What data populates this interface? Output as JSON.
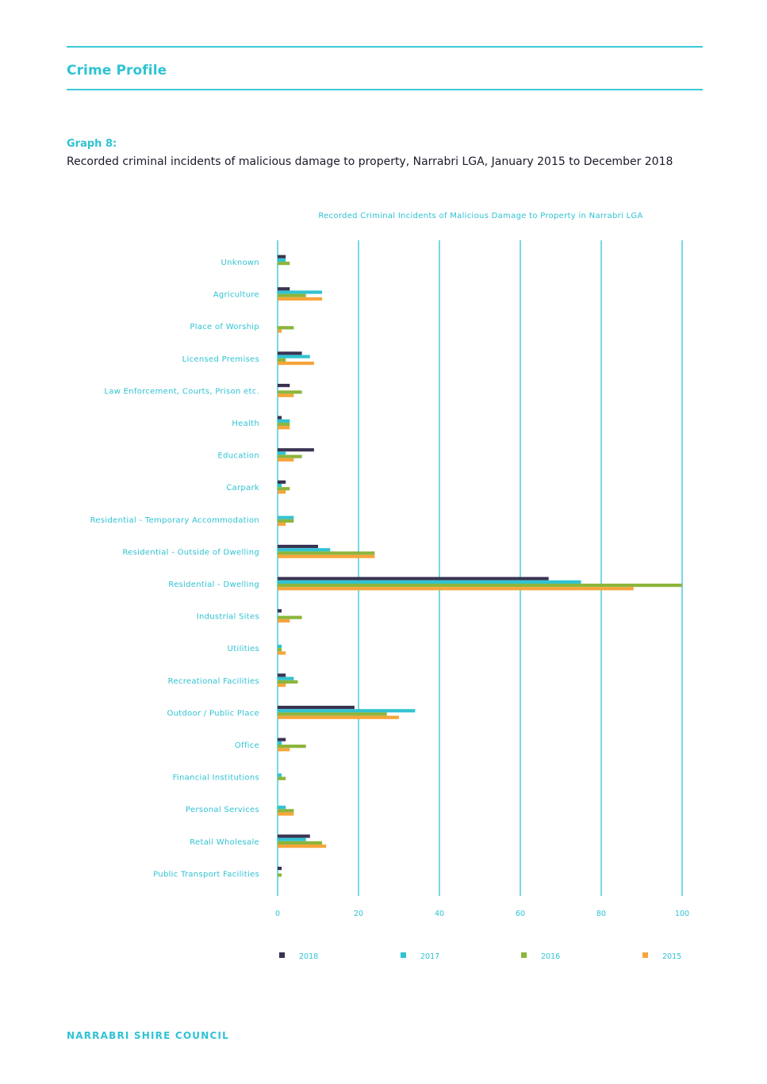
{
  "header": {
    "section_title": "Crime Profile",
    "graph_label": "Graph 8:",
    "graph_caption": "Recorded criminal incidents of malicious damage to property, Narrabri LGA, January 2015 to December 2018"
  },
  "footer": {
    "org_name": "NARRABRI SHIRE COUNCIL"
  },
  "colors": {
    "accent": "#3cc9d8",
    "2018": "#3a3352",
    "2017": "#31c3d2",
    "2016": "#8cb63c",
    "2015": "#f6a53b"
  },
  "chart_data": {
    "type": "bar",
    "orientation": "horizontal",
    "title": "Recorded Criminal Incidents of Malicious Damage to Property in Narrabri LGA",
    "categories": [
      "Unknown",
      "Agriculture",
      "Place of Worship",
      "Licensed Premises",
      "Law Enforcement, Courts, Prison etc.",
      "Health",
      "Education",
      "Carpark",
      "Residential - Temporary Accommodation",
      "Residential - Outside of Dwelling",
      "Residential - Dwelling",
      "Industrial Sites",
      "Utilities",
      "Recreational Facilities",
      "Outdoor / Public Place",
      "Office",
      "Financial Institutions",
      "Personal Services",
      "Retail Wholesale",
      "Public Transport Facilities"
    ],
    "series": [
      {
        "name": "2018",
        "values": [
          2,
          3,
          0,
          6,
          3,
          1,
          9,
          2,
          0,
          10,
          67,
          1,
          0,
          2,
          19,
          2,
          0,
          0,
          8,
          1
        ]
      },
      {
        "name": "2017",
        "values": [
          2,
          11,
          0,
          8,
          0,
          3,
          2,
          1,
          4,
          13,
          75,
          0,
          1,
          4,
          34,
          1,
          1,
          2,
          7,
          0
        ]
      },
      {
        "name": "2016",
        "values": [
          3,
          7,
          4,
          2,
          6,
          3,
          6,
          3,
          4,
          24,
          100,
          6,
          1,
          5,
          27,
          7,
          2,
          4,
          11,
          1
        ]
      },
      {
        "name": "2015",
        "values": [
          0,
          11,
          1,
          9,
          4,
          3,
          4,
          2,
          2,
          24,
          88,
          3,
          2,
          2,
          30,
          3,
          0,
          4,
          12,
          0
        ]
      }
    ],
    "xticks": [
      "0",
      "20",
      "40",
      "60",
      "80",
      "100"
    ],
    "xlim": [
      0,
      100
    ],
    "grid": true,
    "legend_position": "bottom"
  }
}
